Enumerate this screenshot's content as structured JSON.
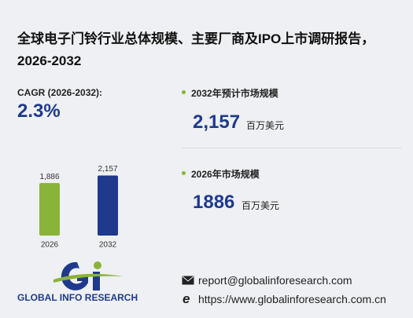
{
  "title": "全球电子门铃行业总体规模、主要厂商及IPO上市调研报告，2026-2032",
  "cagr": {
    "label": "CAGR (2026-2032):",
    "value": "2.3%"
  },
  "stats": [
    {
      "label": "2032年预计市场规模",
      "value": "2,157",
      "unit": "百万美元"
    },
    {
      "label": "2026年市场规模",
      "value": "1886",
      "unit": "百万美元"
    }
  ],
  "chart_data": {
    "type": "bar",
    "categories": [
      "2026",
      "2032"
    ],
    "values": [
      1886,
      2157
    ],
    "value_labels": [
      "1,886",
      "2,157"
    ],
    "colors": [
      "#8ab33a",
      "#1f3a8c"
    ],
    "ylim": [
      0,
      2200
    ]
  },
  "logo": {
    "text": "GLOBAL INFO RESEARCH"
  },
  "contact": {
    "email": "report@globalinforesearch.com",
    "website": "https://www.globalinforesearch.com.cn"
  }
}
